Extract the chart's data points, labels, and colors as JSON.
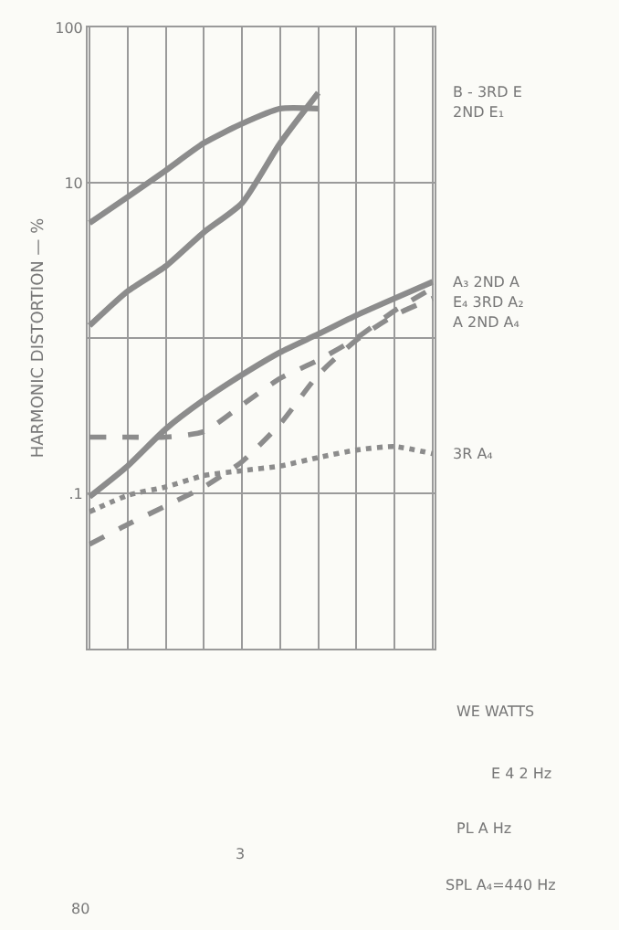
{
  "chart_data": {
    "type": "line",
    "ylabel": "HARMONIC DISTORTION — %",
    "categories": [
      null,
      null,
      null,
      null,
      null,
      null,
      null,
      null,
      null,
      null
    ],
    "series": [
      {
        "name": "B - 3RD E",
        "color": "#8c8c8c",
        "line_style": "solid",
        "values": [
          1.2,
          2.0,
          2.9,
          4.8,
          7.4,
          18,
          38,
          null,
          null,
          null
        ]
      },
      {
        "name": "2ND E₁",
        "color": "#8c8c8c",
        "line_style": "solid",
        "values": [
          5.5,
          8.1,
          12,
          18,
          24,
          30,
          30,
          null,
          null,
          null
        ]
      },
      {
        "name": "A₃ 2ND A",
        "color": "#8c8c8c",
        "line_style": "solid",
        "values": [
          0.095,
          0.15,
          0.26,
          0.4,
          0.58,
          0.81,
          1.06,
          1.4,
          1.8,
          2.3
        ]
      },
      {
        "name": "E₄ 3RD A₂",
        "color": "#8c8c8c",
        "line_style": "dashed",
        "values": [
          0.23,
          0.23,
          0.23,
          0.25,
          0.37,
          0.55,
          0.72,
          1.0,
          1.5,
          2.1
        ]
      },
      {
        "name": "A 2ND A₄",
        "color": "#8c8c8c",
        "line_style": "dashed",
        "values": [
          0.047,
          0.063,
          0.083,
          0.11,
          0.16,
          0.28,
          0.58,
          0.97,
          1.4,
          1.8
        ]
      },
      {
        "name": "3R A₄",
        "color": "#8c8c8c",
        "line_style": "dotted",
        "values": [
          0.076,
          0.097,
          0.11,
          0.13,
          0.14,
          0.15,
          0.17,
          0.19,
          0.2,
          0.18
        ]
      }
    ],
    "log": "y",
    "ylim": [
      0.01,
      100
    ],
    "yticks": [
      100,
      10,
      {
        "value": 1,
        "label": null
      },
      {
        "value": 0.1,
        "label": ".1"
      }
    ],
    "tick_labels": "y",
    "grid": true,
    "marker": "none",
    "legend": false,
    "annotations": [
      "WE WATTS",
      "E 4 2 Hz",
      "PL A Hz",
      "SPL A₄=440 Hz",
      "80",
      "3"
    ]
  }
}
